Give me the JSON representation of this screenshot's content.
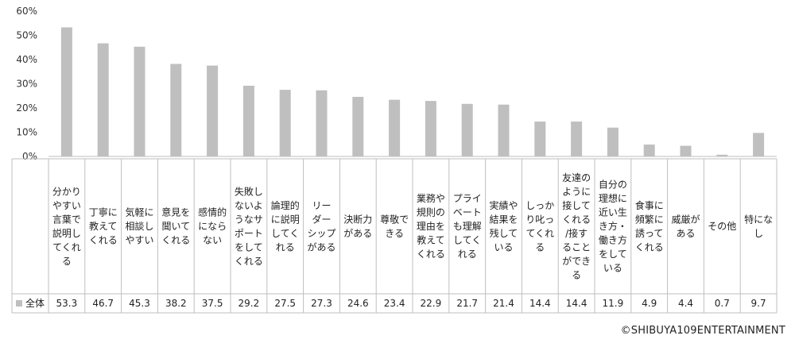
{
  "chart_data": {
    "type": "bar",
    "categories": [
      "分かりやすい言葉で説明してくれる",
      "丁寧に教えてくれる",
      "気軽に相談しやすい",
      "意見を聞いてくれる",
      "感情的にならない",
      "失敗しないようなサポートをしてくれる",
      "論理的に説明してくれる",
      "リーダーシップがある",
      "決断力がある",
      "尊敬できる",
      "業務や規則の理由を教えてくれる",
      "プライベートも理解してくれる",
      "実績や結果を残している",
      "しっかり叱ってくれる",
      "友達のように接してくれる/接することができる",
      "自分の理想に近い生き方・働き方をしている",
      "食事に頻繁に誘ってくれる",
      "威厳がある",
      "その他",
      "特になし"
    ],
    "category_lines": [
      [
        "分かり",
        "やすい",
        "言葉で",
        "説明し",
        "てくれ",
        "る"
      ],
      [
        "丁寧に",
        "教えて",
        "くれる"
      ],
      [
        "気軽に",
        "相談し",
        "やすい"
      ],
      [
        "意見を",
        "聞いて",
        "くれる"
      ],
      [
        "感情的",
        "になら",
        "ない"
      ],
      [
        "失敗し",
        "ないよ",
        "うなサ",
        "ポート",
        "をして",
        "くれる"
      ],
      [
        "論理的",
        "に説明",
        "してく",
        "れる"
      ],
      [
        "リー",
        "ダー",
        "シップ",
        "がある"
      ],
      [
        "決断力",
        "がある"
      ],
      [
        "尊敬で",
        "きる"
      ],
      [
        "業務や",
        "規則の",
        "理由を",
        "教えて",
        "くれる"
      ],
      [
        "プライ",
        "ベート",
        "も理解",
        "してく",
        "れる"
      ],
      [
        "実績や",
        "結果を",
        "残して",
        "いる"
      ],
      [
        "しっか",
        "り叱っ",
        "てくれ",
        "る"
      ],
      [
        "友達の",
        "ように",
        "接して",
        "くれる",
        "/接す",
        "ること",
        "ができ",
        "る"
      ],
      [
        "自分の",
        "理想に",
        "近い生",
        "き方・",
        "働き方",
        "をして",
        "いる"
      ],
      [
        "食事に",
        "頻繁に",
        "誘って",
        "くれる"
      ],
      [
        "威厳が",
        "ある"
      ],
      [
        "その他"
      ],
      [
        "特にな",
        "し"
      ]
    ],
    "series": [
      {
        "name": "全体",
        "color": "#bfbfbf",
        "values": [
          53.3,
          46.7,
          45.3,
          38.2,
          37.5,
          29.2,
          27.5,
          27.3,
          24.6,
          23.4,
          22.9,
          21.7,
          21.4,
          14.4,
          14.4,
          11.9,
          4.9,
          4.4,
          0.7,
          9.7
        ]
      }
    ],
    "value_labels": [
      "53.3",
      "46.7",
      "45.3",
      "38.2",
      "37.5",
      "29.2",
      "27.5",
      "27.3",
      "24.6",
      "23.4",
      "22.9",
      "21.7",
      "21.4",
      "14.4",
      "14.4",
      "11.9",
      "4.9",
      "4.4",
      "0.7",
      "9.7"
    ],
    "ylim": [
      0,
      60
    ],
    "yticks": [
      "0%",
      "10%",
      "20%",
      "30%",
      "40%",
      "50%",
      "60%"
    ],
    "grid": false,
    "legend": "data-table",
    "title": "",
    "xlabel": "",
    "ylabel": ""
  },
  "footer": {
    "credit": "©SHIBUYA109ENTERTAINMENT"
  }
}
